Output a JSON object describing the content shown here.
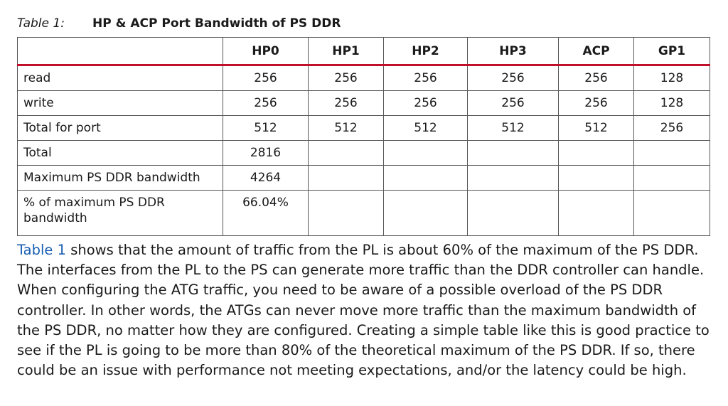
{
  "caption": {
    "label": "Table 1:",
    "title": "HP & ACP Port Bandwidth of PS DDR"
  },
  "table": {
    "headers": [
      "",
      "HP0",
      "HP1",
      "HP2",
      "HP3",
      "ACP",
      "GP1"
    ],
    "rows": [
      {
        "label": "read",
        "cells": [
          "256",
          "256",
          "256",
          "256",
          "256",
          "128"
        ]
      },
      {
        "label": "write",
        "cells": [
          "256",
          "256",
          "256",
          "256",
          "256",
          "128"
        ]
      },
      {
        "label": "Total for port",
        "cells": [
          "512",
          "512",
          "512",
          "512",
          "512",
          "256"
        ]
      },
      {
        "label": "Total",
        "cells": [
          "2816",
          "",
          "",
          "",
          "",
          ""
        ]
      },
      {
        "label": "Maximum PS DDR bandwidth",
        "cells": [
          "4264",
          "",
          "",
          "",
          "",
          ""
        ]
      },
      {
        "label": "% of maximum PS DDR bandwidth",
        "cells": [
          "66.04%",
          "",
          "",
          "",
          "",
          ""
        ]
      }
    ]
  },
  "paragraph": {
    "link_text": "Table 1",
    "body": " shows that the amount of traffic from the PL is about 60% of the maximum of the PS DDR. The interfaces from the PL to the PS can generate more traffic than the DDR controller can handle. When configuring the ATG traffic, you need to be aware of a possible overload of the PS DDR controller. In other words, the ATGs can never move more traffic than the maximum bandwidth of the PS DDR, no matter how they are configured. Creating a simple table like this is good practice to see if the PL is going to be more than 80% of the theoretical maximum of the PS DDR. If so, there could be an issue with performance not meeting expectations, and/or the latency could be high."
  },
  "colors": {
    "header_rule": "#c0102a",
    "link": "#1a5fb4",
    "border": "#555555",
    "text": "#1a1a1a"
  }
}
